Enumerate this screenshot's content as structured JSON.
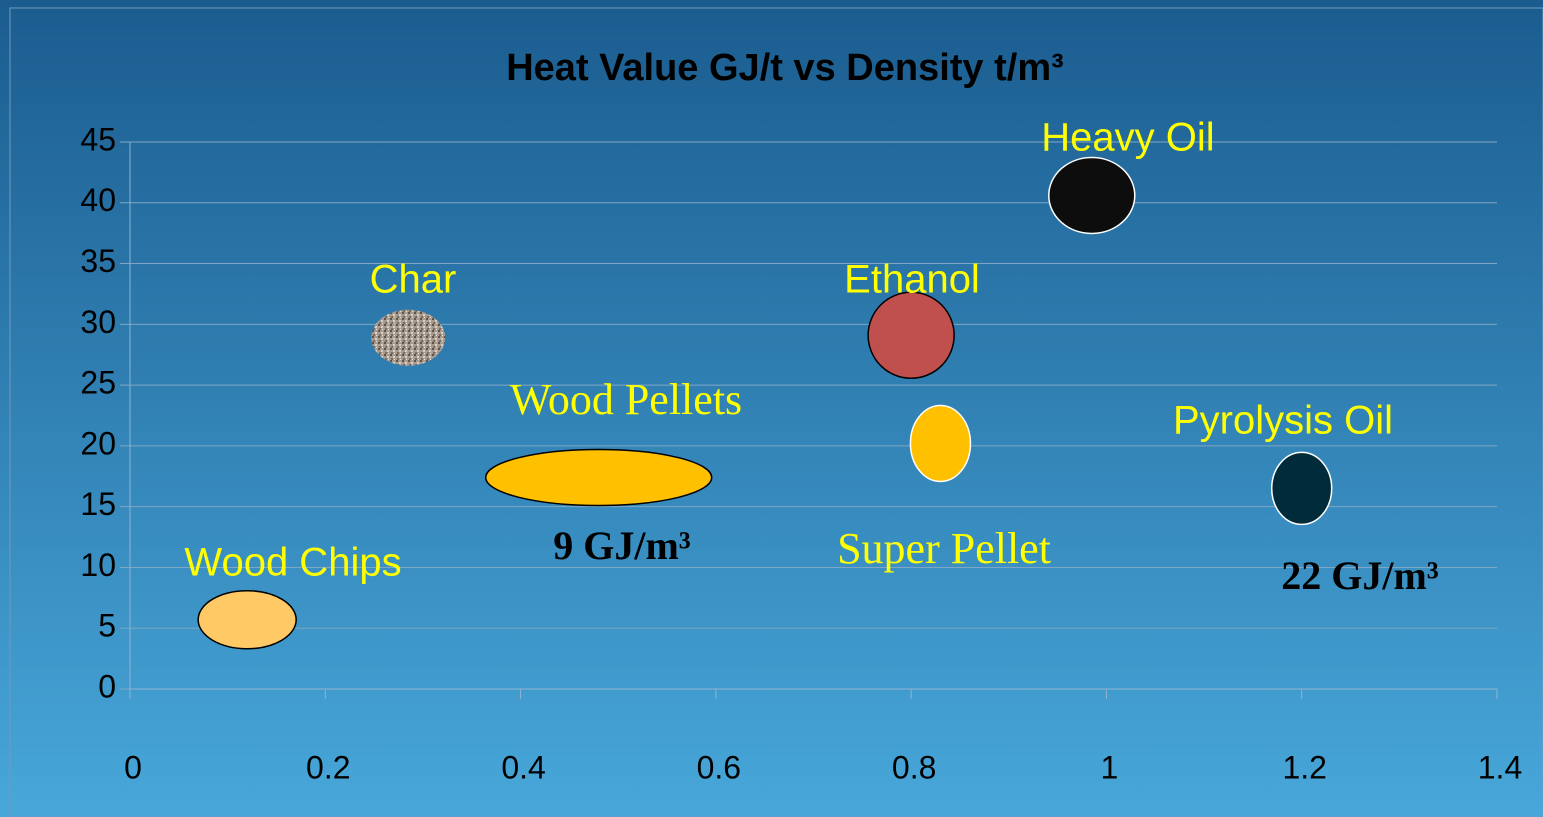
{
  "chart_data": {
    "type": "scatter",
    "title": "Heat Value GJ/t vs Density t/m³",
    "xlim": [
      0,
      1.4
    ],
    "xticks": [
      0,
      0.2,
      0.4,
      0.6,
      0.8,
      1,
      1.2,
      1.4
    ],
    "ylim": [
      0,
      45
    ],
    "yticks": [
      0,
      5,
      10,
      15,
      20,
      25,
      30,
      35,
      40,
      45
    ],
    "grid": true,
    "series": [
      {
        "name": "Wood Chips",
        "color": "#ffc966",
        "x": [
          0.12
        ],
        "values": [
          5.7
        ]
      },
      {
        "name": "Wood Pellets",
        "color": "#ffc000",
        "x": [
          0.48
        ],
        "values": [
          17.4
        ]
      },
      {
        "name": "Char",
        "color": "#a09488",
        "x": [
          0.285
        ],
        "values": [
          28.9
        ]
      },
      {
        "name": "Ethanol",
        "color": "#c0504d",
        "x": [
          0.8
        ],
        "values": [
          29.1
        ]
      },
      {
        "name": "Super Pellet",
        "color": "#ffc000",
        "x": [
          0.83
        ],
        "values": [
          20.2
        ]
      },
      {
        "name": "Heavy Oil",
        "color": "#0d0d0d",
        "x": [
          0.985
        ],
        "values": [
          40.6
        ]
      },
      {
        "name": "Pyrolysis Oil",
        "color": "#002b3a",
        "x": [
          1.2
        ],
        "values": [
          16.5
        ]
      }
    ],
    "annotations": [
      "9 GJ/m³",
      "22 GJ/m³"
    ]
  }
}
